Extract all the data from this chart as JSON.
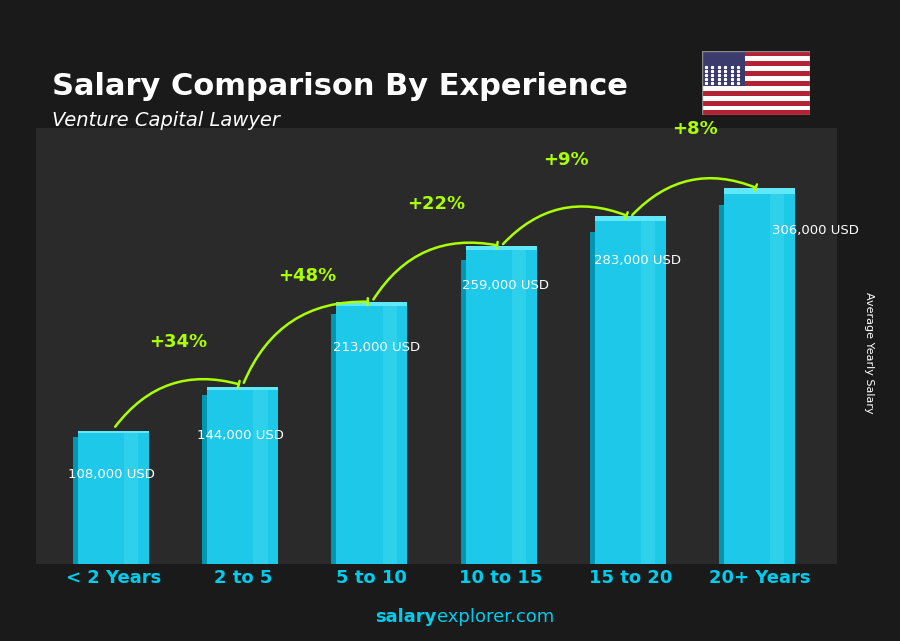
{
  "title": "Salary Comparison By Experience",
  "subtitle": "Venture Capital Lawyer",
  "categories": [
    "< 2 Years",
    "2 to 5",
    "5 to 10",
    "10 to 15",
    "15 to 20",
    "20+ Years"
  ],
  "values": [
    108000,
    144000,
    213000,
    259000,
    283000,
    306000
  ],
  "labels": [
    "108,000 USD",
    "144,000 USD",
    "213,000 USD",
    "259,000 USD",
    "283,000 USD",
    "306,000 USD"
  ],
  "pct_changes": [
    "+34%",
    "+48%",
    "+22%",
    "+9%",
    "+8%"
  ],
  "bar_color_top": "#00d4f0",
  "bar_color_mid": "#00aacc",
  "bar_color_bottom": "#007fa0",
  "background_color": "#1a1a1a",
  "title_color": "#ffffff",
  "subtitle_color": "#ffffff",
  "label_color": "#ffffff",
  "pct_color": "#aaff00",
  "xlabel_color": "#00ccee",
  "footer_color": "#00ccee",
  "ylabel_text": "Average Yearly Salary",
  "footer_text": "salaryexplorer.com",
  "footer_bold": "salary",
  "ylim": [
    0,
    360000
  ]
}
